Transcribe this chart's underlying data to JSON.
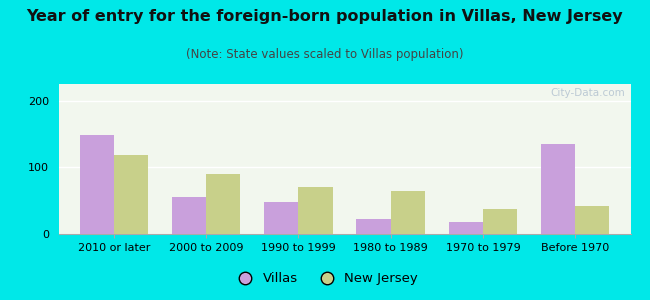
{
  "title": "Year of entry for the foreign-born population in Villas, New Jersey",
  "subtitle": "(Note: State values scaled to Villas population)",
  "categories": [
    "2010 or later",
    "2000 to 2009",
    "1990 to 1999",
    "1980 to 1989",
    "1970 to 1979",
    "Before 1970"
  ],
  "villas_values": [
    148,
    55,
    48,
    22,
    18,
    135
  ],
  "nj_values": [
    118,
    90,
    70,
    65,
    38,
    42
  ],
  "villas_color": "#c9a0dc",
  "nj_color": "#c8d08a",
  "bg_color": "#00e8e8",
  "plot_bg": "#f2f7ee",
  "ylim": [
    0,
    225
  ],
  "yticks": [
    0,
    100,
    200
  ],
  "bar_width": 0.37,
  "legend_villas": "Villas",
  "legend_nj": "New Jersey",
  "title_fontsize": 11.5,
  "subtitle_fontsize": 8.5,
  "tick_fontsize": 8.0,
  "legend_fontsize": 9.5,
  "watermark": "City-Data.com"
}
